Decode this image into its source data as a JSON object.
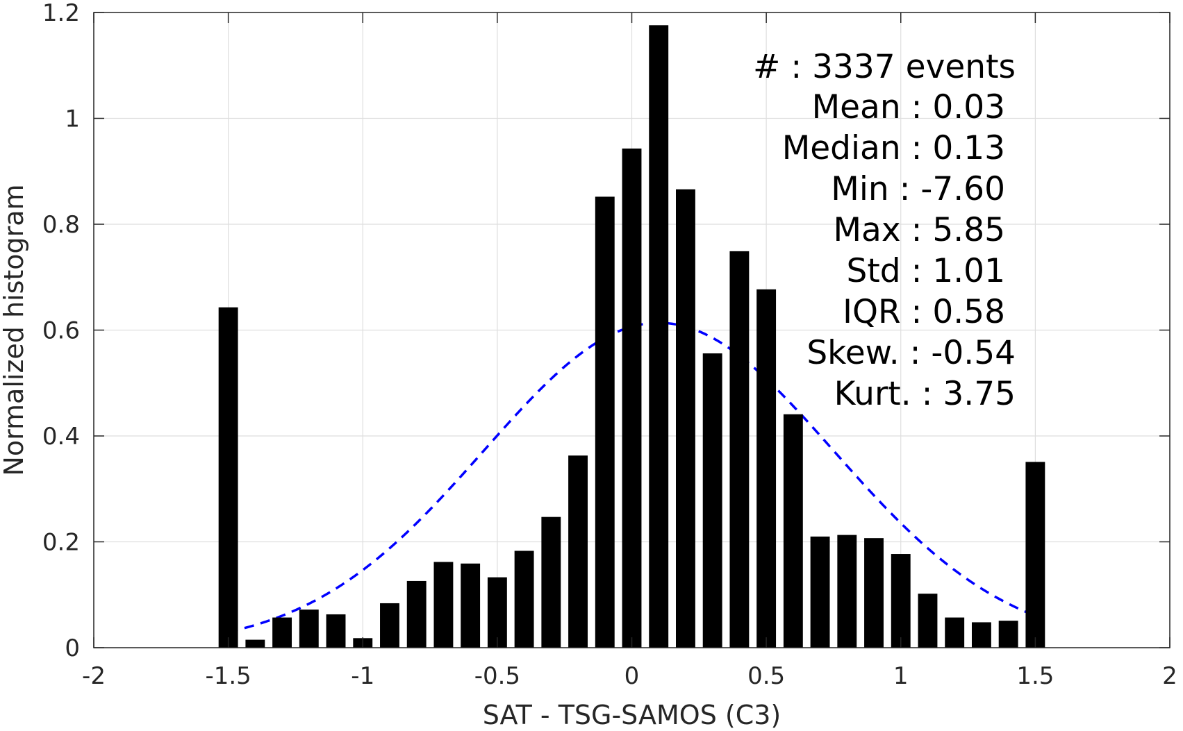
{
  "chart_data": {
    "type": "bar",
    "title": "",
    "xlabel": "SAT - TSG-SAMOS (C3)",
    "ylabel": "Normalized histogram",
    "xlim": [
      -2,
      2
    ],
    "ylim": [
      0,
      1.2
    ],
    "xticks": [
      "-2",
      "-1.5",
      "-1",
      "-0.5",
      "0",
      "0.5",
      "1",
      "1.5",
      "2"
    ],
    "yticks": [
      "0",
      "0.2",
      "0.4",
      "0.6",
      "0.8",
      "1",
      "1.2"
    ],
    "grid": true,
    "bar_color": "#000000",
    "bin_width": 0.1,
    "x": [
      -1.5,
      -1.4,
      -1.3,
      -1.2,
      -1.1,
      -1.0,
      -0.9,
      -0.8,
      -0.7,
      -0.6,
      -0.5,
      -0.4,
      -0.3,
      -0.2,
      -0.1,
      0.0,
      0.1,
      0.2,
      0.3,
      0.4,
      0.5,
      0.6,
      0.7,
      0.8,
      0.9,
      1.0,
      1.1,
      1.2,
      1.3,
      1.4,
      1.5
    ],
    "values": [
      0.643,
      0.015,
      0.057,
      0.072,
      0.063,
      0.018,
      0.084,
      0.126,
      0.162,
      0.159,
      0.133,
      0.183,
      0.247,
      0.363,
      0.852,
      0.943,
      1.176,
      0.866,
      0.556,
      0.749,
      0.677,
      0.441,
      0.21,
      0.213,
      0.207,
      0.177,
      0.102,
      0.057,
      0.048,
      0.051,
      0.351
    ],
    "fit_curve": {
      "style": "dashed",
      "color": "#0000ff",
      "distribution": "normal",
      "mu": 0.1,
      "sigma": 0.65,
      "xrange": [
        -1.5,
        1.5
      ]
    },
    "stats": {
      "count_label": "#  : 3337 events",
      "lines": [
        "Mean : 0.03",
        "Median : 0.13",
        "Min : -7.60",
        "Max : 5.85",
        "Std : 1.01",
        "IQR : 0.58",
        "Skew. : -0.54",
        "Kurt. : 3.75"
      ]
    }
  }
}
